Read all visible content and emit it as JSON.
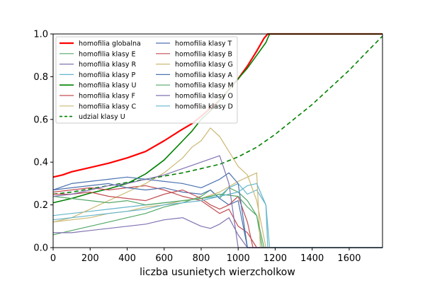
{
  "chart_data": {
    "type": "line",
    "title": "",
    "xlabel": "liczba usunietych wierzcholkow",
    "ylabel": "",
    "xlim": [
      0,
      1780
    ],
    "ylim": [
      0,
      1.0
    ],
    "xticks": [
      0,
      200,
      400,
      600,
      800,
      1000,
      1200,
      1400,
      1600
    ],
    "yticks": [
      0.0,
      0.2,
      0.4,
      0.6,
      0.8,
      1.0
    ],
    "xtick_labels": [
      "0",
      "200",
      "400",
      "600",
      "800",
      "1000",
      "1200",
      "1400",
      "1600"
    ],
    "ytick_labels": [
      "0.0",
      "0.2",
      "0.4",
      "0.6",
      "0.8",
      "1.0"
    ],
    "grid": false,
    "legend_position": "upper-left",
    "series": [
      {
        "name": "homofilia globalna",
        "color": "#ff0000",
        "width": 2.2,
        "dash": "",
        "x": [
          0,
          50,
          100,
          200,
          300,
          400,
          500,
          600,
          700,
          750,
          800,
          900,
          950,
          1000,
          1050,
          1100,
          1140,
          1160,
          1200,
          1780
        ],
        "y": [
          0.33,
          0.34,
          0.355,
          0.375,
          0.395,
          0.42,
          0.45,
          0.5,
          0.555,
          0.58,
          0.615,
          0.69,
          0.74,
          0.79,
          0.85,
          0.92,
          0.98,
          1.0,
          1.0,
          1.0
        ]
      },
      {
        "name": "homofilia klasy E",
        "color": "#55a868",
        "width": 1.2,
        "dash": "",
        "x": [
          0,
          100,
          200,
          300,
          400,
          500,
          600,
          700,
          800,
          850,
          900,
          950,
          1000,
          1050,
          1100,
          1130,
          1780
        ],
        "y": [
          0.06,
          0.08,
          0.1,
          0.12,
          0.14,
          0.16,
          0.19,
          0.21,
          0.24,
          0.27,
          0.23,
          0.28,
          0.26,
          0.22,
          0.15,
          0.0,
          0.0
        ]
      },
      {
        "name": "homofilia klasy R",
        "color": "#8172b2",
        "width": 1.2,
        "dash": "",
        "x": [
          0,
          100,
          200,
          300,
          400,
          500,
          600,
          700,
          750,
          800,
          850,
          900,
          950,
          1000,
          1050,
          1780
        ],
        "y": [
          0.07,
          0.07,
          0.08,
          0.09,
          0.1,
          0.11,
          0.13,
          0.14,
          0.12,
          0.1,
          0.09,
          0.11,
          0.14,
          0.06,
          0.0,
          0.0
        ]
      },
      {
        "name": "homofilia klasy P",
        "color": "#64b5cd",
        "width": 1.2,
        "dash": "",
        "x": [
          0,
          100,
          200,
          300,
          400,
          500,
          600,
          700,
          800,
          900,
          950,
          1000,
          1050,
          1100,
          1150,
          1160,
          1780
        ],
        "y": [
          0.15,
          0.16,
          0.17,
          0.18,
          0.19,
          0.2,
          0.21,
          0.22,
          0.23,
          0.24,
          0.28,
          0.3,
          0.25,
          0.27,
          0.2,
          0.0,
          0.0
        ]
      },
      {
        "name": "homofilia klasy U",
        "color": "#008000",
        "width": 1.6,
        "dash": "",
        "x": [
          0,
          100,
          200,
          300,
          400,
          500,
          600,
          700,
          750,
          800,
          850,
          900,
          950,
          1000,
          1050,
          1100,
          1150,
          1170,
          1200,
          1780
        ],
        "y": [
          0.21,
          0.23,
          0.255,
          0.275,
          0.3,
          0.345,
          0.41,
          0.5,
          0.545,
          0.6,
          0.64,
          0.69,
          0.74,
          0.79,
          0.84,
          0.9,
          0.96,
          1.0,
          1.0,
          1.0
        ]
      },
      {
        "name": "homofilia klasy F",
        "color": "#c44e52",
        "width": 1.2,
        "dash": "",
        "x": [
          0,
          100,
          200,
          300,
          400,
          500,
          600,
          700,
          800,
          900,
          950,
          1000,
          1050,
          1100,
          1780
        ],
        "y": [
          0.26,
          0.27,
          0.28,
          0.27,
          0.28,
          0.29,
          0.27,
          0.24,
          0.22,
          0.16,
          0.18,
          0.1,
          0.07,
          0.0,
          0.0
        ]
      },
      {
        "name": "homofilia klasy C",
        "color": "#ccb974",
        "width": 1.2,
        "dash": "",
        "x": [
          0,
          100,
          200,
          300,
          400,
          500,
          600,
          700,
          750,
          800,
          850,
          900,
          950,
          1000,
          1050,
          1100,
          1150,
          1780
        ],
        "y": [
          0.12,
          0.14,
          0.18,
          0.22,
          0.26,
          0.3,
          0.35,
          0.42,
          0.47,
          0.5,
          0.56,
          0.52,
          0.45,
          0.38,
          0.34,
          0.22,
          0.0,
          0.0
        ]
      },
      {
        "name": "udzial klasy U",
        "color": "#008000",
        "width": 1.6,
        "dash": "6,4",
        "x": [
          0,
          100,
          200,
          300,
          400,
          500,
          600,
          700,
          800,
          900,
          1000,
          1100,
          1200,
          1300,
          1400,
          1500,
          1600,
          1700,
          1780
        ],
        "y": [
          0.25,
          0.26,
          0.275,
          0.29,
          0.305,
          0.32,
          0.335,
          0.35,
          0.37,
          0.39,
          0.425,
          0.47,
          0.53,
          0.6,
          0.67,
          0.75,
          0.83,
          0.92,
          0.99
        ]
      },
      {
        "name": "homofilia klasy T",
        "color": "#4c72b0",
        "width": 1.2,
        "dash": "",
        "x": [
          0,
          100,
          200,
          300,
          400,
          500,
          600,
          700,
          800,
          850,
          900,
          950,
          1000,
          1050,
          1780
        ],
        "y": [
          0.27,
          0.28,
          0.29,
          0.3,
          0.28,
          0.27,
          0.28,
          0.26,
          0.25,
          0.27,
          0.23,
          0.2,
          0.22,
          0.0,
          0.0
        ]
      },
      {
        "name": "homofilia klasy B",
        "color": "#c44e52",
        "width": 1.2,
        "dash": "",
        "x": [
          0,
          100,
          200,
          300,
          400,
          500,
          600,
          700,
          800,
          850,
          900,
          950,
          1000,
          1050,
          1080,
          1780
        ],
        "y": [
          0.25,
          0.25,
          0.26,
          0.24,
          0.23,
          0.22,
          0.25,
          0.27,
          0.23,
          0.2,
          0.18,
          0.2,
          0.24,
          0.12,
          0.0,
          0.0
        ]
      },
      {
        "name": "homofilia klasy G",
        "color": "#ccb974",
        "width": 1.2,
        "dash": "",
        "x": [
          0,
          100,
          200,
          300,
          400,
          500,
          600,
          700,
          800,
          900,
          1000,
          1100,
          1120,
          1780
        ],
        "y": [
          0.12,
          0.13,
          0.14,
          0.16,
          0.17,
          0.19,
          0.2,
          0.22,
          0.23,
          0.26,
          0.31,
          0.35,
          0.0,
          0.0
        ]
      },
      {
        "name": "homofilia klasy A",
        "color": "#4c72b0",
        "width": 1.2,
        "dash": "",
        "x": [
          0,
          100,
          200,
          300,
          400,
          500,
          600,
          700,
          800,
          900,
          950,
          1000,
          1050,
          1780
        ],
        "y": [
          0.27,
          0.3,
          0.31,
          0.32,
          0.33,
          0.32,
          0.31,
          0.3,
          0.28,
          0.32,
          0.35,
          0.3,
          0.0,
          0.0
        ]
      },
      {
        "name": "homofilia klasy M",
        "color": "#55a868",
        "width": 1.2,
        "dash": "",
        "x": [
          0,
          100,
          200,
          300,
          400,
          500,
          600,
          700,
          800,
          900,
          1000,
          1050,
          1100,
          1140,
          1780
        ],
        "y": [
          0.24,
          0.23,
          0.22,
          0.21,
          0.22,
          0.2,
          0.21,
          0.22,
          0.23,
          0.25,
          0.24,
          0.19,
          0.15,
          0.0,
          0.0
        ]
      },
      {
        "name": "homofilia klasy O",
        "color": "#8172b2",
        "width": 1.2,
        "dash": "",
        "x": [
          0,
          100,
          200,
          300,
          400,
          500,
          600,
          700,
          800,
          900,
          950,
          1000,
          1780
        ],
        "y": [
          0.24,
          0.25,
          0.27,
          0.29,
          0.3,
          0.32,
          0.34,
          0.37,
          0.4,
          0.43,
          0.3,
          0.0,
          0.0
        ]
      },
      {
        "name": "homofilia klasy D",
        "color": "#64b5cd",
        "width": 1.2,
        "dash": "",
        "x": [
          0,
          100,
          200,
          300,
          400,
          500,
          600,
          700,
          800,
          900,
          1000,
          1050,
          1100,
          1150,
          1170,
          1780
        ],
        "y": [
          0.13,
          0.14,
          0.15,
          0.16,
          0.17,
          0.18,
          0.2,
          0.21,
          0.22,
          0.24,
          0.26,
          0.29,
          0.3,
          0.2,
          0.0,
          0.0
        ]
      }
    ]
  }
}
